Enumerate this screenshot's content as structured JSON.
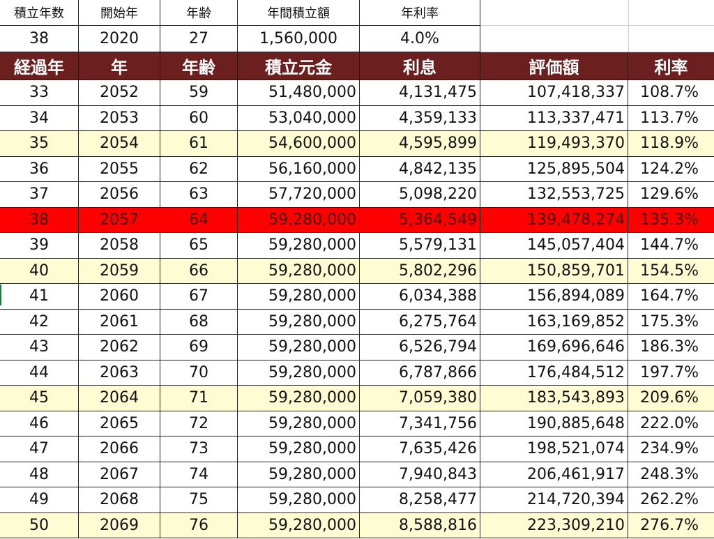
{
  "top_headers": [
    "積立年数",
    "開始年",
    "年齢",
    "年間積立額",
    "年利率"
  ],
  "top_values": [
    "38",
    "2020",
    "27",
    "1,560,000",
    "4.0%"
  ],
  "table_headers": [
    "経過年",
    "年",
    "年齢",
    "積立元金",
    "利息",
    "評価額",
    "利率"
  ],
  "rows": [
    {
      "cells": [
        "33",
        "2052",
        "59",
        "51,480,000",
        "4,131,475",
        "107,418,337",
        "108.7%"
      ],
      "highlight": "none"
    },
    {
      "cells": [
        "34",
        "2053",
        "60",
        "53,040,000",
        "4,359,133",
        "113,337,471",
        "113.7%"
      ],
      "highlight": "none"
    },
    {
      "cells": [
        "35",
        "2054",
        "61",
        "54,600,000",
        "4,595,899",
        "119,493,370",
        "118.9%"
      ],
      "highlight": "yellow"
    },
    {
      "cells": [
        "36",
        "2055",
        "62",
        "56,160,000",
        "4,842,135",
        "125,895,504",
        "124.2%"
      ],
      "highlight": "none"
    },
    {
      "cells": [
        "37",
        "2056",
        "63",
        "57,720,000",
        "5,098,220",
        "132,553,725",
        "129.6%"
      ],
      "highlight": "none"
    },
    {
      "cells": [
        "38",
        "2057",
        "64",
        "59,280,000",
        "5,364,549",
        "139,478,274",
        "135.3%"
      ],
      "highlight": "red"
    },
    {
      "cells": [
        "39",
        "2058",
        "65",
        "59,280,000",
        "5,579,131",
        "145,057,404",
        "144.7%"
      ],
      "highlight": "none"
    },
    {
      "cells": [
        "40",
        "2059",
        "66",
        "59,280,000",
        "5,802,296",
        "150,859,701",
        "154.5%"
      ],
      "highlight": "yellow"
    },
    {
      "cells": [
        "41",
        "2060",
        "67",
        "59,280,000",
        "6,034,388",
        "156,894,089",
        "164.7%"
      ],
      "highlight": "none"
    },
    {
      "cells": [
        "42",
        "2061",
        "68",
        "59,280,000",
        "6,275,764",
        "163,169,852",
        "175.3%"
      ],
      "highlight": "none"
    },
    {
      "cells": [
        "43",
        "2062",
        "69",
        "59,280,000",
        "6,526,794",
        "169,696,646",
        "186.3%"
      ],
      "highlight": "none"
    },
    {
      "cells": [
        "44",
        "2063",
        "70",
        "59,280,000",
        "6,787,866",
        "176,484,512",
        "197.7%"
      ],
      "highlight": "none"
    },
    {
      "cells": [
        "45",
        "2064",
        "71",
        "59,280,000",
        "7,059,380",
        "183,543,893",
        "209.6%"
      ],
      "highlight": "yellow"
    },
    {
      "cells": [
        "46",
        "2065",
        "72",
        "59,280,000",
        "7,341,756",
        "190,885,648",
        "222.0%"
      ],
      "highlight": "none"
    },
    {
      "cells": [
        "47",
        "2066",
        "73",
        "59,280,000",
        "7,635,426",
        "198,521,074",
        "234.9%"
      ],
      "highlight": "none"
    },
    {
      "cells": [
        "48",
        "2067",
        "74",
        "59,280,000",
        "7,940,843",
        "206,461,917",
        "248.3%"
      ],
      "highlight": "none"
    },
    {
      "cells": [
        "49",
        "2068",
        "75",
        "59,280,000",
        "8,258,477",
        "214,720,394",
        "262.2%"
      ],
      "highlight": "none"
    },
    {
      "cells": [
        "50",
        "2069",
        "76",
        "59,280,000",
        "8,588,816",
        "223,309,210",
        "276.7%"
      ],
      "highlight": "yellow"
    }
  ],
  "colors": {
    "header_bg": "#6b1f1f",
    "header_text": "#ffffff",
    "highlight_yellow": "#fdfcd2",
    "highlight_red": "#ff0000"
  }
}
